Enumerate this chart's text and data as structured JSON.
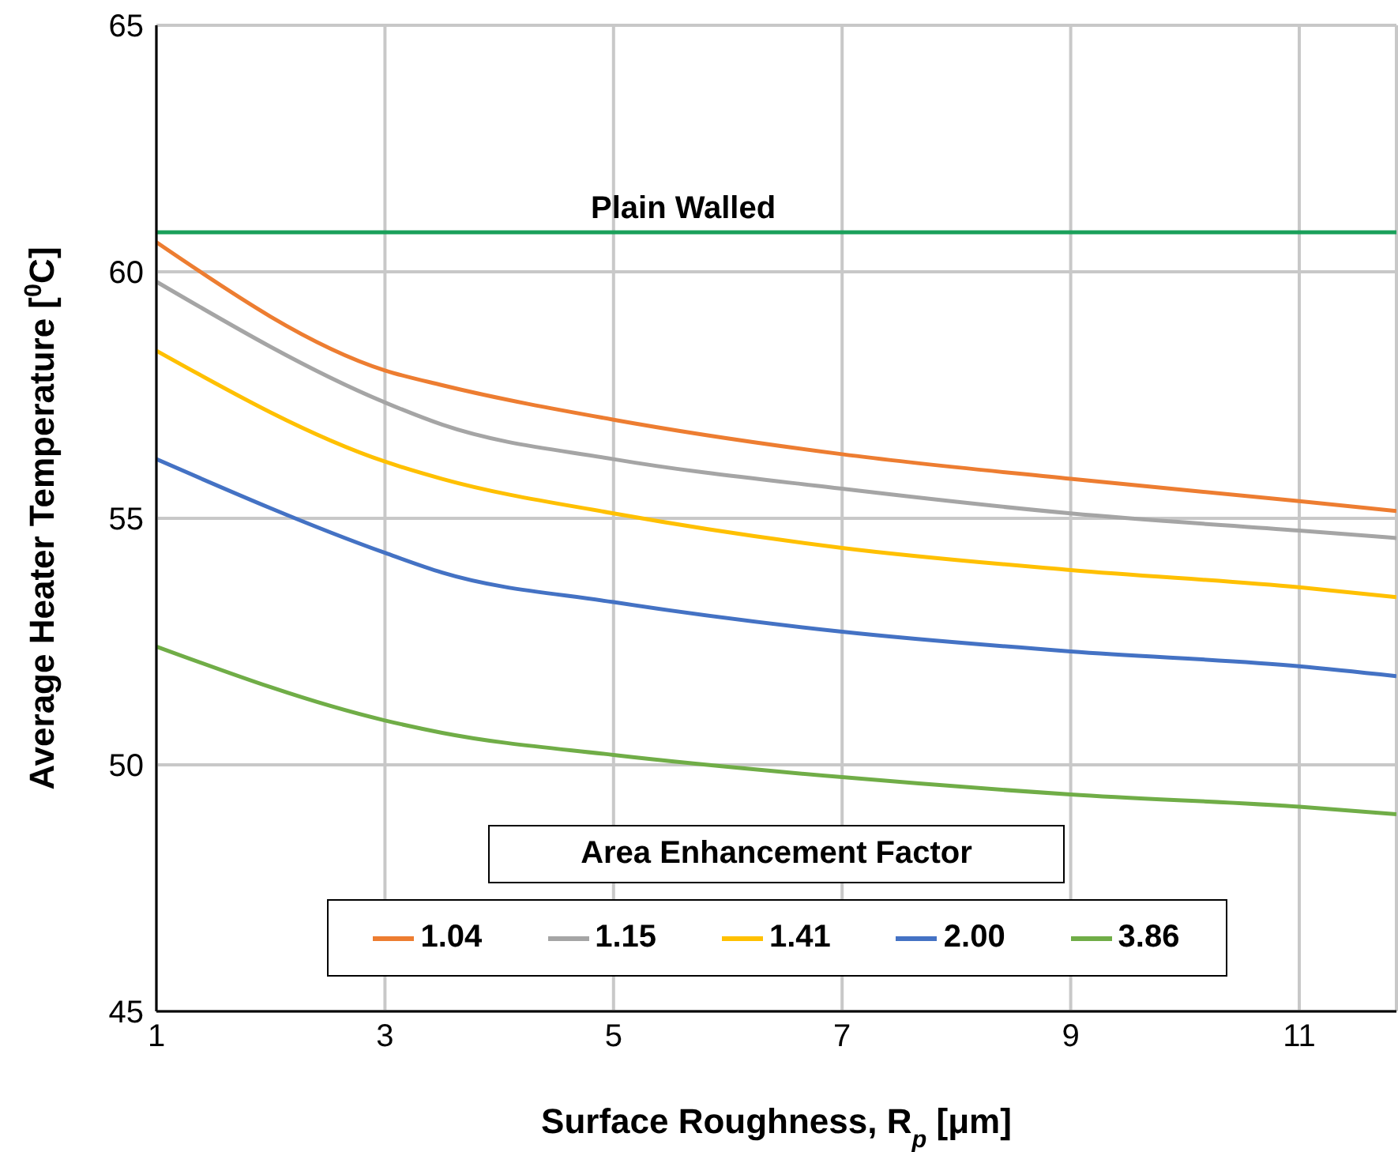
{
  "chart_data": {
    "type": "line",
    "xlabel": "Surface Roughness, R$_{p}$ [μm]",
    "ylabel": "Average Heater Temperature [$^{0}$C]",
    "legend_title": "Area Enhancement Factor",
    "xlim": [
      1,
      11.85
    ],
    "xticks": [
      1,
      3,
      5,
      7,
      9,
      11
    ],
    "ylim": [
      45,
      65
    ],
    "yticks": [
      45,
      50,
      55,
      60,
      65
    ],
    "grid": true,
    "legend": "bottom",
    "marker": "none",
    "line_style": "solid",
    "x": [
      1,
      3,
      3.5,
      5,
      7,
      9,
      11,
      11.85
    ],
    "series": [
      {
        "name": "1.04",
        "color": "#ed7d31",
        "values": [
          60.6,
          58.0,
          57.7,
          57.0,
          56.3,
          55.8,
          55.35,
          55.15
        ]
      },
      {
        "name": "1.15",
        "color": "#a5a5a5",
        "values": [
          59.8,
          57.35,
          56.9,
          56.2,
          55.6,
          55.1,
          54.75,
          54.6
        ]
      },
      {
        "name": "1.41",
        "color": "#ffc000",
        "values": [
          58.4,
          56.15,
          55.8,
          55.1,
          54.4,
          53.95,
          53.6,
          53.4
        ]
      },
      {
        "name": "2.00",
        "color": "#4472c4",
        "values": [
          56.2,
          54.3,
          53.9,
          53.3,
          52.7,
          52.3,
          52.0,
          51.8
        ]
      },
      {
        "name": "3.86",
        "color": "#70ad47",
        "values": [
          52.4,
          50.9,
          50.65,
          50.2,
          49.75,
          49.4,
          49.15,
          49.0
        ]
      }
    ],
    "ref_lines": [
      {
        "axis": "y",
        "value": 60.8,
        "label": "Plain Walled",
        "color": "#1aa05a"
      }
    ]
  }
}
